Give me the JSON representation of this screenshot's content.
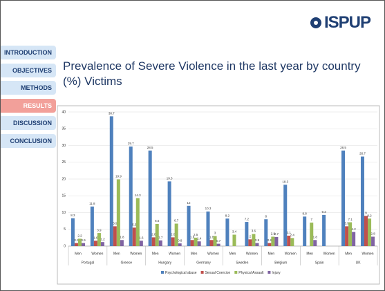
{
  "logo": "ISPUP",
  "nav": [
    "INTRODUCTION",
    "OBJECTIVES",
    "METHODS",
    "RESULTS",
    "DISCUSSION",
    "CONCLUSION"
  ],
  "active_nav": 3,
  "title": "Prevalence of Severe Violence in the last year by country (%) Victims",
  "chart_data": {
    "type": "bar",
    "categories": [
      "Men",
      "Women",
      "Men",
      "Women",
      "Men",
      "Women",
      "Men",
      "Women",
      "Men",
      "Women",
      "Men",
      "Women",
      "Men",
      "Women",
      "Men",
      "Women"
    ],
    "groups": [
      "Portugal",
      "Greece",
      "Hungary",
      "Germany",
      "Sweden",
      "Belgium",
      "Spain",
      "UK"
    ],
    "series": [
      {
        "name": "Psychological abuse",
        "color": "#4f81bd",
        "values": [
          8.3,
          11.8,
          38.7,
          29.7,
          28.5,
          19.3,
          12,
          10.3,
          8.2,
          7.2,
          8,
          18.3,
          8.8,
          9.3,
          28.5,
          26.7
        ]
      },
      {
        "name": "Sexual Coercion",
        "color": "#c0504d",
        "values": [
          0.9,
          1.6,
          5.9,
          5.5,
          2.6,
          2.6,
          1.8,
          1.8,
          null,
          2,
          0.9,
          3.1,
          null,
          null,
          5.9,
          9
        ]
      },
      {
        "name": "Physical Assault",
        "color": "#9bbb59",
        "values": [
          2.2,
          3.9,
          19.9,
          14.3,
          6.6,
          6.7,
          2.5,
          3,
          3.4,
          3.6,
          2.8,
          2.4,
          7,
          null,
          7.1,
          8.2
        ]
      },
      {
        "name": "Injury",
        "color": "#8064a2",
        "values": [
          0.9,
          1.2,
          1.8,
          1.6,
          1.7,
          0.8,
          1.4,
          0.7,
          null,
          0.9,
          2.7,
          null,
          1.8,
          null,
          4.2,
          2.8
        ]
      }
    ],
    "ylim": [
      0,
      40
    ],
    "yticks": [
      0,
      5,
      10,
      15,
      20,
      25,
      30,
      35,
      40
    ],
    "grid": true,
    "legend": "bottom"
  }
}
